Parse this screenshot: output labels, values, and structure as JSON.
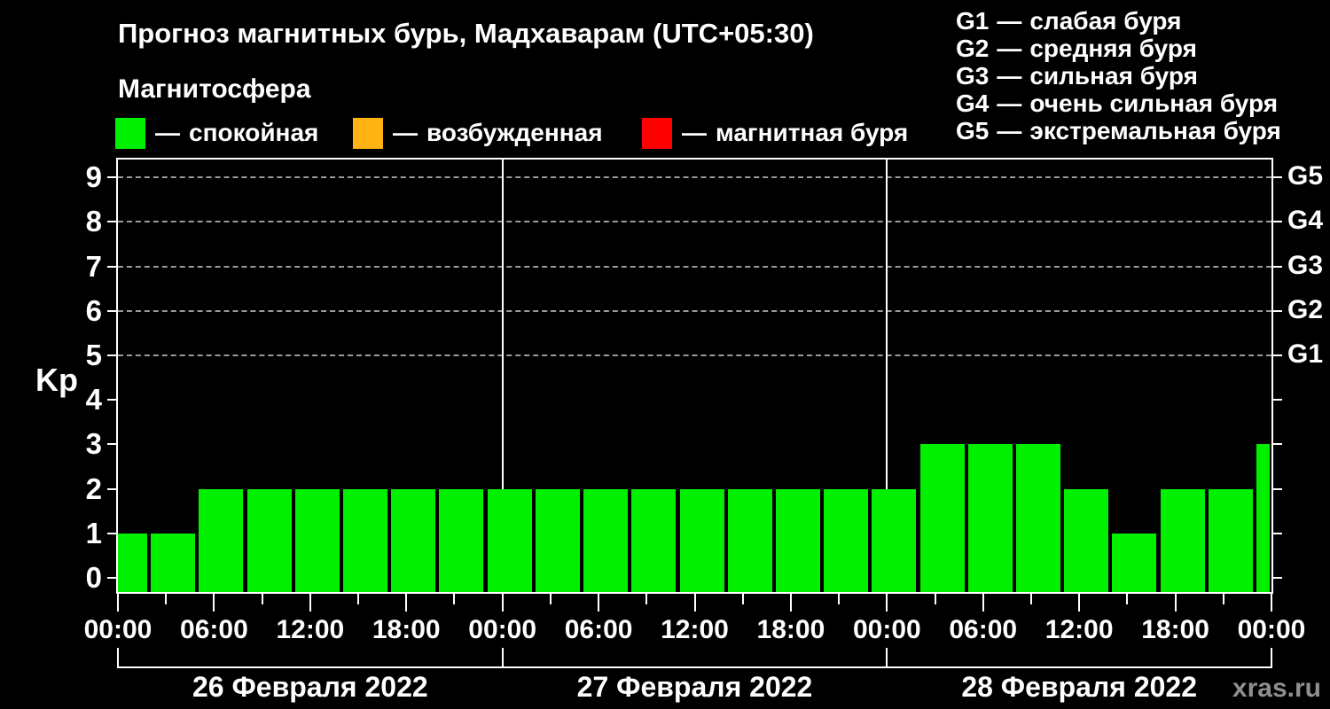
{
  "title": "Прогноз магнитных бурь, Мадхаварам (UTC+05:30)",
  "subtitle": "Магнитосфера",
  "dash": "—",
  "legend": {
    "items": [
      {
        "name": "спокойная",
        "color": "#00f000"
      },
      {
        "name": "возбужденная",
        "color": "#ffb414"
      },
      {
        "name": "магнитная буря",
        "color": "#ff0000"
      }
    ]
  },
  "g_scale": [
    {
      "code": "G1",
      "kp": 5,
      "desc": "слабая буря"
    },
    {
      "code": "G2",
      "kp": 6,
      "desc": "средняя буря"
    },
    {
      "code": "G3",
      "kp": 7,
      "desc": "сильная буря"
    },
    {
      "code": "G4",
      "kp": 8,
      "desc": "очень сильная буря"
    },
    {
      "code": "G5",
      "kp": 9,
      "desc": "экстремальная буря"
    }
  ],
  "watermark": "xras.ru",
  "chart_data": {
    "type": "bar",
    "ylabel": "Kp",
    "ylim": [
      0,
      9
    ],
    "yticks": [
      0,
      1,
      2,
      3,
      4,
      5,
      6,
      7,
      8,
      9
    ],
    "grid_kp": [
      5,
      6,
      7,
      8,
      9
    ],
    "interval_hours": 3,
    "time_labels": [
      "00:00",
      "06:00",
      "12:00",
      "18:00"
    ],
    "closing_time_label": "00:00",
    "days": [
      {
        "date": "26 Февраля 2022",
        "kp": [
          1,
          1,
          2,
          2,
          2,
          2,
          2,
          2
        ]
      },
      {
        "date": "27 Февраля 2022",
        "kp": [
          2,
          2,
          2,
          2,
          2,
          2,
          2,
          2
        ]
      },
      {
        "date": "28 Февраля 2022",
        "kp": [
          2,
          3,
          3,
          3,
          2,
          1,
          2,
          2
        ]
      }
    ],
    "next_interval_kp": 3,
    "thresholds": {
      "quiet_max": 3,
      "excited_max": 4
    },
    "legend_position": "top-left",
    "grid": "dashed horizontal at storm levels only"
  }
}
